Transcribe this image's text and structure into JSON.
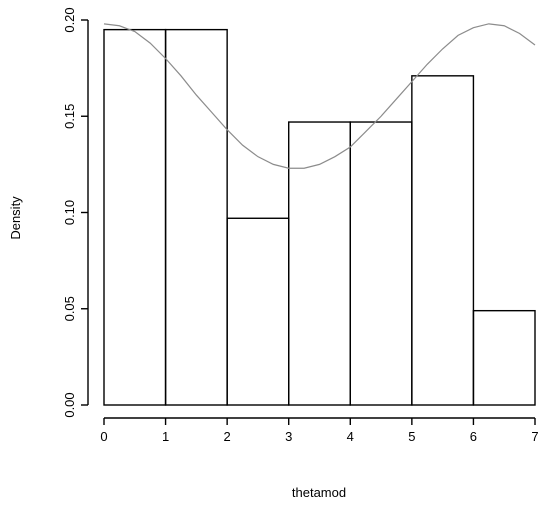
{
  "chart_data": {
    "type": "histogram",
    "xlabel": "thetamod",
    "ylabel": "Density",
    "xlim": [
      0,
      7
    ],
    "ylim": [
      0,
      0.2
    ],
    "x_ticks": [
      "0",
      "1",
      "2",
      "3",
      "4",
      "5",
      "6",
      "7"
    ],
    "y_ticks": [
      "0.00",
      "0.05",
      "0.10",
      "0.15",
      "0.20"
    ],
    "bins": [
      {
        "start": 0,
        "end": 1,
        "density": 0.195
      },
      {
        "start": 1,
        "end": 2,
        "density": 0.195
      },
      {
        "start": 2,
        "end": 3,
        "density": 0.097
      },
      {
        "start": 3,
        "end": 4,
        "density": 0.147
      },
      {
        "start": 4,
        "end": 5,
        "density": 0.147
      },
      {
        "start": 5,
        "end": 6,
        "density": 0.171
      },
      {
        "start": 6,
        "end": 7,
        "density": 0.049
      }
    ],
    "density_curve": {
      "x": [
        0,
        0.25,
        0.5,
        0.75,
        1,
        1.25,
        1.5,
        1.75,
        2,
        2.25,
        2.5,
        2.75,
        3,
        3.25,
        3.5,
        3.75,
        4,
        4.25,
        4.5,
        4.75,
        5,
        5.25,
        5.5,
        5.75,
        6,
        6.25,
        6.5,
        6.75,
        7
      ],
      "y": [
        0.198,
        0.197,
        0.194,
        0.188,
        0.18,
        0.171,
        0.161,
        0.152,
        0.143,
        0.135,
        0.129,
        0.125,
        0.123,
        0.123,
        0.125,
        0.129,
        0.134,
        0.142,
        0.15,
        0.159,
        0.168,
        0.177,
        0.185,
        0.192,
        0.196,
        0.198,
        0.197,
        0.193,
        0.187
      ]
    },
    "colors": {
      "bars": "#000000",
      "curve": "#8c8c8c"
    },
    "grid": false,
    "legend": "none"
  }
}
